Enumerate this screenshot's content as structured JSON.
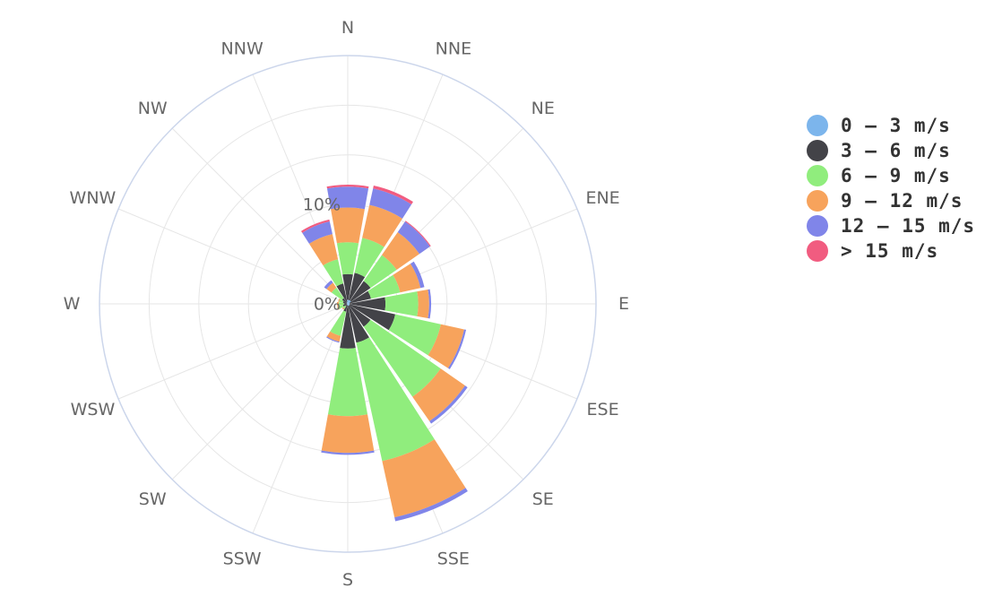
{
  "chart_data": {
    "type": "bar",
    "subtype": "windrose",
    "directions": [
      "N",
      "NNE",
      "NE",
      "ENE",
      "E",
      "ESE",
      "SE",
      "SSE",
      "S",
      "SSW",
      "SW",
      "WSW",
      "W",
      "WNW",
      "NW",
      "NNW"
    ],
    "tick_labels": [
      "0%",
      "10%"
    ],
    "ylim": [
      0,
      25
    ],
    "stacked": true,
    "grid": true,
    "legend_position": "right",
    "series": [
      {
        "name": "0 – 3 m/s",
        "color": "#7cb5ec",
        "values": [
          0.4,
          0.4,
          0.4,
          0.2,
          0.2,
          0.2,
          0.2,
          0.2,
          0.2,
          0.1,
          0.1,
          0.1,
          0.1,
          0.1,
          0.1,
          0.2
        ]
      },
      {
        "name": "3 – 6 m/s",
        "color": "#434348",
        "values": [
          2.6,
          2.8,
          2.4,
          2.2,
          3.6,
          4.7,
          2.6,
          3.8,
          4.3,
          0.7,
          0.2,
          0.4,
          0.3,
          0.4,
          0.6,
          1.9
        ]
      },
      {
        "name": "6 – 9 m/s",
        "color": "#90ed7d",
        "values": [
          3.2,
          3.6,
          3.2,
          3.0,
          3.3,
          4.7,
          8.6,
          12.2,
          6.8,
          2.5,
          0.3,
          0.5,
          0.5,
          0.4,
          1.3,
          2.5
        ]
      },
      {
        "name": "9 – 12 m/s",
        "color": "#f7a35c",
        "values": [
          3.5,
          3.4,
          2.8,
          2.1,
          1.1,
          2.4,
          3.0,
          5.8,
          3.7,
          0.6,
          0.1,
          0.1,
          0.2,
          0.1,
          0.6,
          2.6
        ]
      },
      {
        "name": "12 – 15 m/s",
        "color": "#8085e9",
        "values": [
          2.1,
          1.7,
          1.3,
          0.4,
          0.2,
          0.2,
          0.3,
          0.4,
          0.2,
          0.1,
          0.0,
          0.0,
          0.0,
          0.0,
          0.3,
          1.3
        ]
      },
      {
        "name": "> 15 m/s",
        "color": "#f15c80",
        "values": [
          0.2,
          0.3,
          0.1,
          0.0,
          0.0,
          0.0,
          0.0,
          0.0,
          0.0,
          0.0,
          0.0,
          0.0,
          0.0,
          0.0,
          0.0,
          0.2
        ]
      }
    ]
  }
}
